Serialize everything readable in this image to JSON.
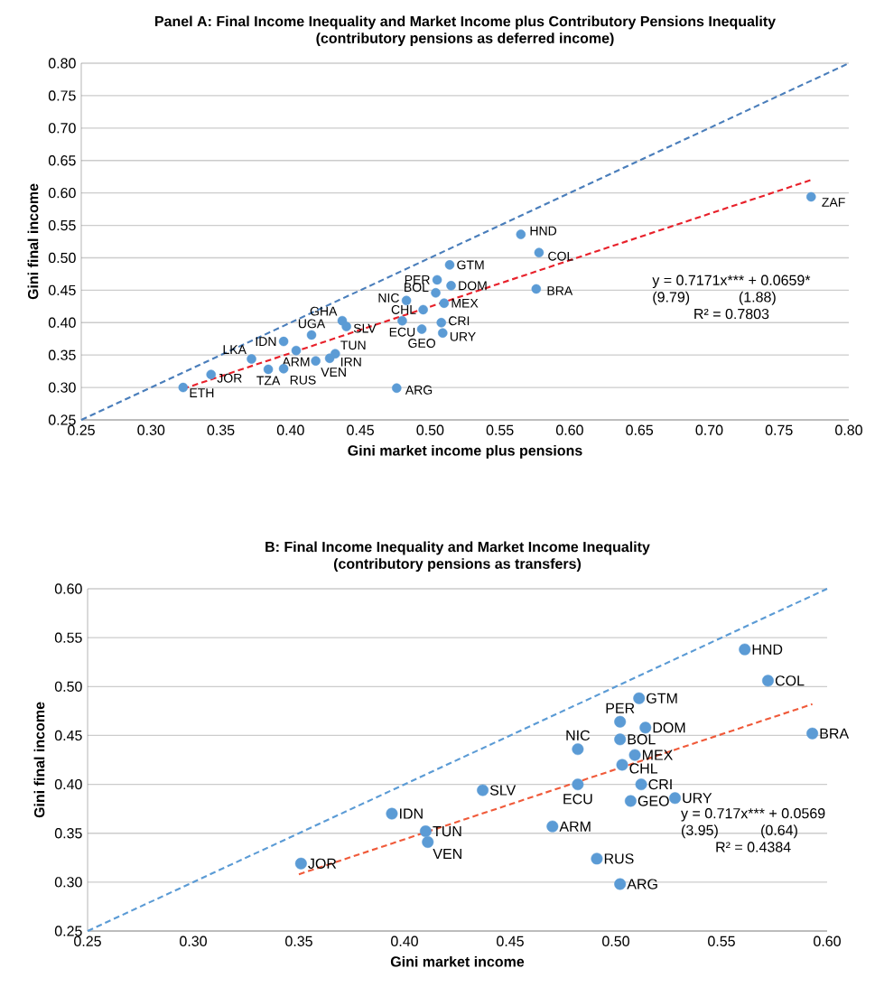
{
  "chart_data": [
    {
      "type": "scatter",
      "title": "Panel A: Final Income Inequality and Market Income plus Contributory Pensions Inequality",
      "subtitle": "(contributory pensions as deferred income)",
      "xlabel": "Gini market income plus pensions",
      "ylabel": "Gini final income",
      "xlim": [
        0.25,
        0.8
      ],
      "ylim": [
        0.25,
        0.8
      ],
      "xticks": [
        {
          "value": 0.25,
          "label": "0.25"
        },
        {
          "value": 0.3,
          "label": "0.30"
        },
        {
          "value": 0.35,
          "label": "0.35"
        },
        {
          "value": 0.4,
          "label": "0.40"
        },
        {
          "value": 0.45,
          "label": "0.45"
        },
        {
          "value": 0.5,
          "label": "0.50"
        },
        {
          "value": 0.55,
          "label": "0.55"
        },
        {
          "value": 0.6,
          "label": "0.60"
        },
        {
          "value": 0.65,
          "label": "0.65"
        },
        {
          "value": 0.7,
          "label": "0.70"
        },
        {
          "value": 0.75,
          "label": "0.75"
        },
        {
          "value": 0.8,
          "label": "0.80"
        }
      ],
      "yticks": [
        {
          "value": 0.25,
          "label": "0.25"
        },
        {
          "value": 0.3,
          "label": "0.30"
        },
        {
          "value": 0.35,
          "label": "0.35"
        },
        {
          "value": 0.4,
          "label": "0.40"
        },
        {
          "value": 0.45,
          "label": "0.45"
        },
        {
          "value": 0.5,
          "label": "0.50"
        },
        {
          "value": 0.55,
          "label": "0.55"
        },
        {
          "value": 0.6,
          "label": "0.60"
        },
        {
          "value": 0.65,
          "label": "0.65"
        },
        {
          "value": 0.7,
          "label": "0.70"
        },
        {
          "value": 0.75,
          "label": "0.75"
        },
        {
          "value": 0.8,
          "label": "0.80"
        }
      ],
      "grid": "y",
      "marker": "circle",
      "series": [
        {
          "type": "line",
          "color": "#4a7ebb",
          "line_style": "dashed",
          "marker": "none",
          "x": [
            0.25,
            0.8
          ],
          "values": [
            0.25,
            0.8
          ]
        },
        {
          "type": "line",
          "color": "#e8202a",
          "line_style": "dashed",
          "marker": "none",
          "x": [
            0.323,
            0.773
          ],
          "values": [
            0.298,
            0.62
          ]
        },
        {
          "type": "scatter",
          "color": "#5b9bd5",
          "x": [
            0.323,
            0.343,
            0.372,
            0.384,
            0.395,
            0.395,
            0.404,
            0.418,
            0.415,
            0.432,
            0.428,
            0.437,
            0.44,
            0.48,
            0.483,
            0.494,
            0.495,
            0.504,
            0.505,
            0.508,
            0.509,
            0.51,
            0.514,
            0.515,
            0.476,
            0.565,
            0.578,
            0.576,
            0.773
          ],
          "values": [
            0.3,
            0.32,
            0.344,
            0.328,
            0.329,
            0.371,
            0.357,
            0.341,
            0.381,
            0.352,
            0.345,
            0.403,
            0.394,
            0.403,
            0.434,
            0.39,
            0.42,
            0.446,
            0.466,
            0.4,
            0.384,
            0.43,
            0.489,
            0.457,
            0.299,
            0.536,
            0.508,
            0.452,
            0.594
          ]
        }
      ],
      "annotations": [
        {
          "text": "ETH",
          "x": 0.323,
          "y": 0.3
        },
        {
          "text": "JOR",
          "x": 0.343,
          "y": 0.32
        },
        {
          "text": "LKA",
          "x": 0.372,
          "y": 0.344
        },
        {
          "text": "TZA",
          "x": 0.384,
          "y": 0.328
        },
        {
          "text": "RUS",
          "x": 0.395,
          "y": 0.329
        },
        {
          "text": "IDN",
          "x": 0.395,
          "y": 0.371
        },
        {
          "text": "ARM",
          "x": 0.404,
          "y": 0.357
        },
        {
          "text": "VEN",
          "x": 0.418,
          "y": 0.341
        },
        {
          "text": "UGA",
          "x": 0.415,
          "y": 0.381
        },
        {
          "text": "TUN",
          "x": 0.432,
          "y": 0.352
        },
        {
          "text": "IRN",
          "x": 0.428,
          "y": 0.345
        },
        {
          "text": "GHA",
          "x": 0.437,
          "y": 0.403
        },
        {
          "text": "SLV",
          "x": 0.44,
          "y": 0.394
        },
        {
          "text": "ECU",
          "x": 0.48,
          "y": 0.403
        },
        {
          "text": "NIC",
          "x": 0.483,
          "y": 0.434
        },
        {
          "text": "GEO",
          "x": 0.494,
          "y": 0.39
        },
        {
          "text": "CHL",
          "x": 0.495,
          "y": 0.42
        },
        {
          "text": "BOL",
          "x": 0.504,
          "y": 0.446
        },
        {
          "text": "PER",
          "x": 0.505,
          "y": 0.466
        },
        {
          "text": "CRI",
          "x": 0.508,
          "y": 0.4
        },
        {
          "text": "URY",
          "x": 0.509,
          "y": 0.384
        },
        {
          "text": "MEX",
          "x": 0.51,
          "y": 0.43
        },
        {
          "text": "GTM",
          "x": 0.514,
          "y": 0.489
        },
        {
          "text": "DOM",
          "x": 0.515,
          "y": 0.457
        },
        {
          "text": "ARG",
          "x": 0.476,
          "y": 0.299
        },
        {
          "text": "HND",
          "x": 0.565,
          "y": 0.536
        },
        {
          "text": "COL",
          "x": 0.578,
          "y": 0.508
        },
        {
          "text": "BRA",
          "x": 0.576,
          "y": 0.452
        },
        {
          "text": "ZAF",
          "x": 0.773,
          "y": 0.594
        },
        "y = 0.7171x*** + 0.0659*",
        "(9.79)",
        "(1.88)",
        "R² = 0.7803"
      ]
    },
    {
      "type": "scatter",
      "title": "B: Final Income Inequality and Market Income Inequality",
      "subtitle": "(contributory pensions as transfers)",
      "xlabel": "Gini market income",
      "ylabel": "Gini final income",
      "xlim": [
        0.25,
        0.6
      ],
      "ylim": [
        0.25,
        0.6
      ],
      "xticks": [
        {
          "value": 0.25,
          "label": "0.25"
        },
        {
          "value": 0.3,
          "label": "0.30"
        },
        {
          "value": 0.35,
          "label": "0.35"
        },
        {
          "value": 0.4,
          "label": "0.40"
        },
        {
          "value": 0.45,
          "label": "0.45"
        },
        {
          "value": 0.5,
          "label": "0.50"
        },
        {
          "value": 0.55,
          "label": "0.55"
        },
        {
          "value": 0.6,
          "label": "0.60"
        }
      ],
      "yticks": [
        {
          "value": 0.25,
          "label": "0.25"
        },
        {
          "value": 0.3,
          "label": "0.30"
        },
        {
          "value": 0.35,
          "label": "0.35"
        },
        {
          "value": 0.4,
          "label": "0.40"
        },
        {
          "value": 0.45,
          "label": "0.45"
        },
        {
          "value": 0.5,
          "label": "0.50"
        },
        {
          "value": 0.55,
          "label": "0.55"
        },
        {
          "value": 0.6,
          "label": "0.60"
        }
      ],
      "grid": "y",
      "marker": "circle",
      "series": [
        {
          "type": "line",
          "color": "#5b9bd5",
          "line_style": "dashed",
          "marker": "none",
          "x": [
            0.25,
            0.6
          ],
          "values": [
            0.25,
            0.6
          ]
        },
        {
          "type": "line",
          "color": "#f05a3a",
          "line_style": "dashed",
          "marker": "none",
          "x": [
            0.35,
            0.593
          ],
          "values": [
            0.308,
            0.482
          ]
        },
        {
          "type": "scatter",
          "color": "#5b9bd5",
          "x": [
            0.351,
            0.394,
            0.41,
            0.411,
            0.437,
            0.482,
            0.482,
            0.47,
            0.511,
            0.502,
            0.514,
            0.502,
            0.509,
            0.503,
            0.512,
            0.507,
            0.528,
            0.491,
            0.502,
            0.561,
            0.572,
            0.593
          ],
          "values": [
            0.319,
            0.37,
            0.352,
            0.341,
            0.394,
            0.436,
            0.4,
            0.357,
            0.488,
            0.464,
            0.458,
            0.446,
            0.43,
            0.42,
            0.4,
            0.383,
            0.386,
            0.324,
            0.298,
            0.538,
            0.506,
            0.452
          ]
        }
      ],
      "annotations": [
        {
          "text": "JOR",
          "x": 0.351,
          "y": 0.319
        },
        {
          "text": "IDN",
          "x": 0.394,
          "y": 0.37
        },
        {
          "text": "TUN",
          "x": 0.41,
          "y": 0.352
        },
        {
          "text": "VEN",
          "x": 0.411,
          "y": 0.341
        },
        {
          "text": "SLV",
          "x": 0.437,
          "y": 0.394
        },
        {
          "text": "NIC",
          "x": 0.482,
          "y": 0.436
        },
        {
          "text": "ECU",
          "x": 0.482,
          "y": 0.4
        },
        {
          "text": "ARM",
          "x": 0.47,
          "y": 0.357
        },
        {
          "text": "GTM",
          "x": 0.511,
          "y": 0.488
        },
        {
          "text": "PER",
          "x": 0.502,
          "y": 0.464
        },
        {
          "text": "DOM",
          "x": 0.514,
          "y": 0.458
        },
        {
          "text": "BOL",
          "x": 0.502,
          "y": 0.446
        },
        {
          "text": "MEX",
          "x": 0.509,
          "y": 0.43
        },
        {
          "text": "CHL",
          "x": 0.503,
          "y": 0.42
        },
        {
          "text": "CRI",
          "x": 0.512,
          "y": 0.4
        },
        {
          "text": "GEO",
          "x": 0.507,
          "y": 0.383
        },
        {
          "text": "URY",
          "x": 0.528,
          "y": 0.386
        },
        {
          "text": "RUS",
          "x": 0.491,
          "y": 0.324
        },
        {
          "text": "ARG",
          "x": 0.502,
          "y": 0.298
        },
        {
          "text": "HND",
          "x": 0.561,
          "y": 0.538
        },
        {
          "text": "COL",
          "x": 0.572,
          "y": 0.506
        },
        {
          "text": "BRA",
          "x": 0.593,
          "y": 0.452
        },
        "y = 0.717x*** + 0.0569",
        "(3.95)",
        "(0.64)",
        "R² = 0.4384"
      ]
    }
  ]
}
